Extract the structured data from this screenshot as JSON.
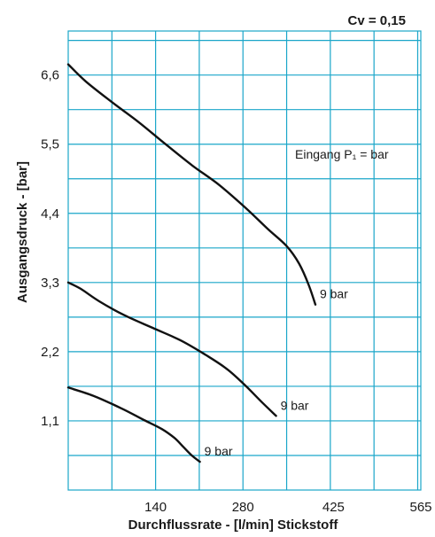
{
  "chart_data": {
    "type": "line",
    "cv_label": "Cv = 0,15",
    "xlabel": "Durchflussrate - [l/min] Stickstoff",
    "ylabel": "Ausgangsdruck - [bar]",
    "xlim": [
      0,
      565
    ],
    "ylim": [
      0,
      7.3
    ],
    "x_ticks": [
      {
        "value": 140,
        "label": "140"
      },
      {
        "value": 280,
        "label": "280"
      },
      {
        "value": 425,
        "label": "425"
      },
      {
        "value": 565,
        "label": "565"
      }
    ],
    "y_ticks": [
      {
        "value": 1.1,
        "label": "1,1"
      },
      {
        "value": 2.2,
        "label": "2,2"
      },
      {
        "value": 3.3,
        "label": "3,3"
      },
      {
        "value": 4.4,
        "label": "4,4"
      },
      {
        "value": 5.5,
        "label": "5,5"
      },
      {
        "value": 6.6,
        "label": "6,6"
      }
    ],
    "grid": true,
    "grid_x_step": 70,
    "grid_y_step": 0.55,
    "inlet_label": "Eingang P₁ = bar",
    "series": [
      {
        "label": "9 bar",
        "points": [
          [
            0,
            6.77
          ],
          [
            28,
            6.5
          ],
          [
            70,
            6.17
          ],
          [
            113,
            5.85
          ],
          [
            156,
            5.5
          ],
          [
            199,
            5.16
          ],
          [
            242,
            4.85
          ],
          [
            285,
            4.48
          ],
          [
            320,
            4.15
          ],
          [
            350,
            3.88
          ],
          [
            370,
            3.6
          ],
          [
            385,
            3.27
          ],
          [
            396,
            2.95
          ]
        ]
      },
      {
        "label": "9 bar",
        "points": [
          [
            0,
            3.3
          ],
          [
            20,
            3.2
          ],
          [
            50,
            3.0
          ],
          [
            90,
            2.78
          ],
          [
            135,
            2.58
          ],
          [
            180,
            2.38
          ],
          [
            220,
            2.15
          ],
          [
            255,
            1.92
          ],
          [
            285,
            1.65
          ],
          [
            310,
            1.4
          ],
          [
            333,
            1.18
          ]
        ]
      },
      {
        "label": "9 bar",
        "points": [
          [
            0,
            1.63
          ],
          [
            40,
            1.5
          ],
          [
            85,
            1.3
          ],
          [
            120,
            1.12
          ],
          [
            150,
            0.97
          ],
          [
            170,
            0.83
          ],
          [
            185,
            0.68
          ],
          [
            198,
            0.55
          ],
          [
            211,
            0.45
          ]
        ]
      }
    ]
  }
}
